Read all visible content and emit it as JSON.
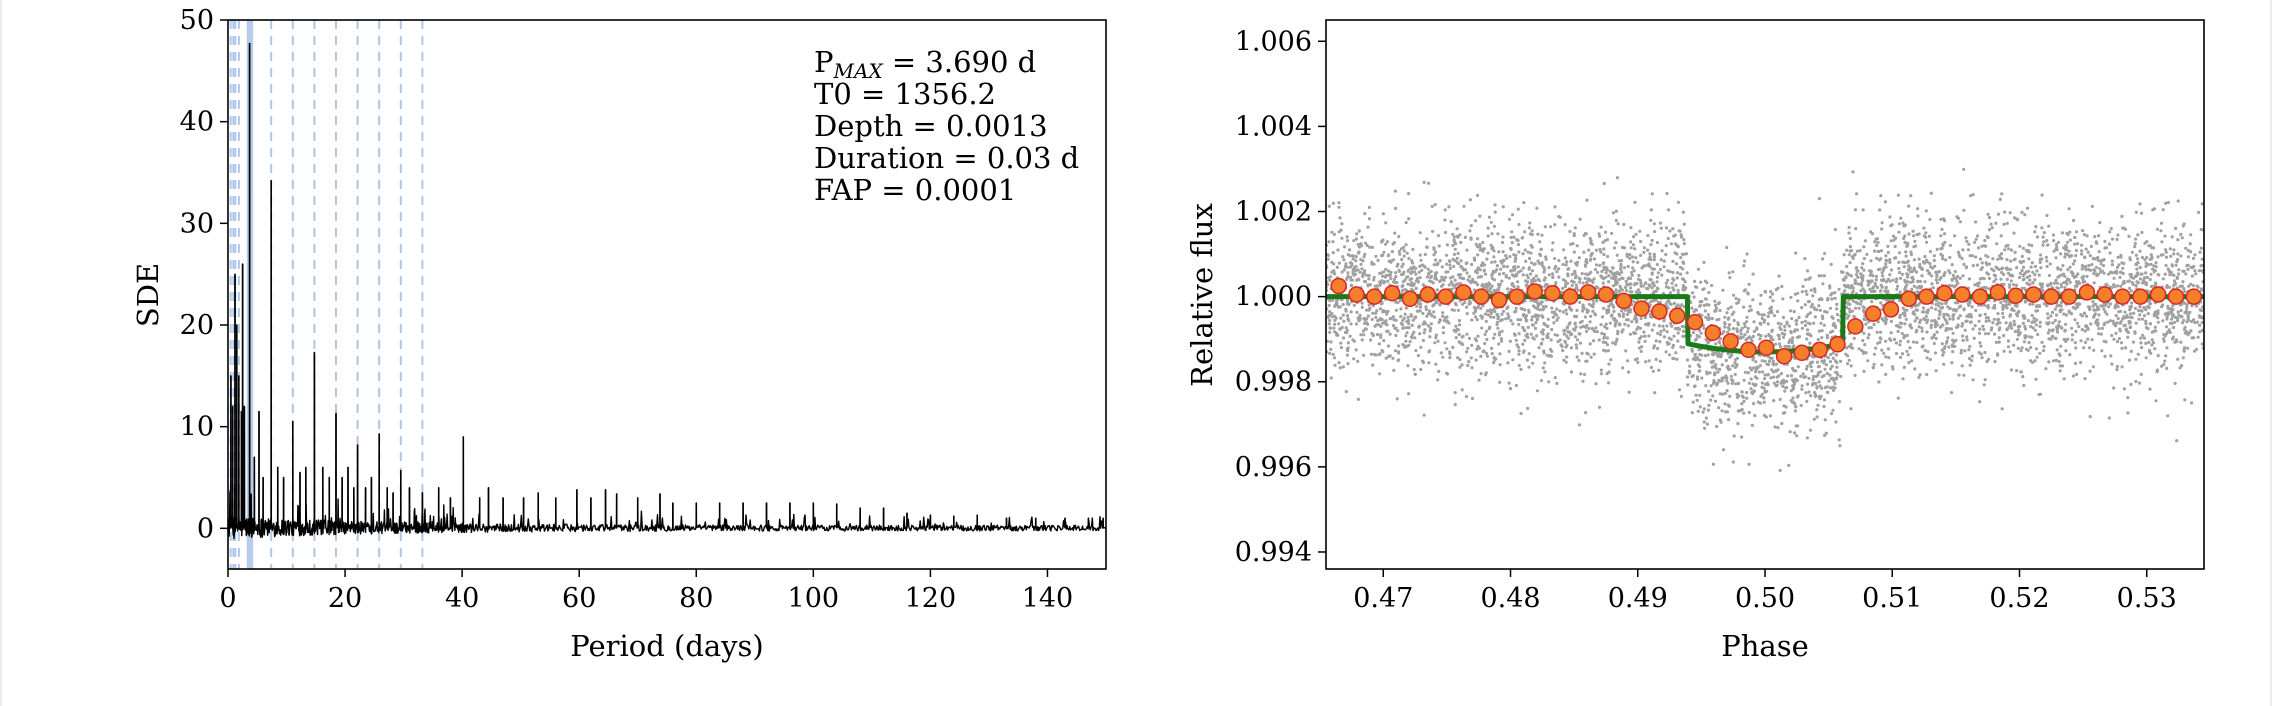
{
  "chart_data": [
    {
      "type": "line",
      "title": "",
      "xlabel": "Period (days)",
      "ylabel": "SDE",
      "xlim": [
        0,
        150
      ],
      "ylim": [
        -4,
        50
      ],
      "xticks": [
        0,
        20,
        40,
        60,
        80,
        100,
        120,
        140
      ],
      "yticks": [
        0,
        10,
        20,
        30,
        40,
        50
      ],
      "grid": false,
      "annotations": [
        {
          "main": "P",
          "sub": "MAX",
          "rest": " = 3.690 d"
        },
        {
          "text": "T0 = 1356.2"
        },
        {
          "text": "Depth = 0.0013"
        },
        {
          "text": "Duration = 0.03 d"
        },
        {
          "text": "FAP = 0.0001"
        }
      ],
      "highlight_band": [
        3.2,
        4.3
      ],
      "harmonic_lines": [
        0.46,
        0.92,
        1.23,
        1.85,
        7.38,
        11.07,
        14.76,
        18.45,
        22.14,
        25.83,
        29.52,
        33.21
      ],
      "series": [
        {
          "color": "#000000",
          "peaks": [
            [
              0.5,
              15
            ],
            [
              0.8,
              12
            ],
            [
              1.2,
              25
            ],
            [
              1.5,
              20
            ],
            [
              1.85,
              15
            ],
            [
              2.3,
              11.5
            ],
            [
              2.5,
              26
            ],
            [
              2.8,
              12
            ],
            [
              3.69,
              47.7
            ],
            [
              4.5,
              7
            ],
            [
              5.3,
              11.5
            ],
            [
              6.0,
              5
            ],
            [
              7.38,
              34.2
            ],
            [
              8.5,
              6
            ],
            [
              9.5,
              5
            ],
            [
              11.07,
              10.5
            ],
            [
              12.3,
              5.5
            ],
            [
              13.3,
              6
            ],
            [
              14.76,
              17.3
            ],
            [
              16.2,
              6
            ],
            [
              17.3,
              5
            ],
            [
              18.45,
              11.3
            ],
            [
              19.5,
              5
            ],
            [
              20.5,
              6
            ],
            [
              21.5,
              4
            ],
            [
              22.14,
              8.2
            ],
            [
              23.5,
              4
            ],
            [
              24.5,
              5
            ],
            [
              25.83,
              9.3
            ],
            [
              27.2,
              4
            ],
            [
              28.2,
              3.5
            ],
            [
              29.52,
              5.7
            ],
            [
              31,
              4
            ],
            [
              33.21,
              3.5
            ],
            [
              36,
              4
            ],
            [
              38,
              3
            ],
            [
              40.2,
              9
            ],
            [
              43,
              3
            ],
            [
              44.5,
              4
            ],
            [
              47,
              3
            ],
            [
              50.5,
              3
            ],
            [
              53,
              3.5
            ],
            [
              56,
              3
            ],
            [
              59.6,
              3.8
            ],
            [
              62,
              3
            ],
            [
              64.5,
              3.8
            ],
            [
              66.4,
              3.4
            ],
            [
              70,
              3
            ],
            [
              73.8,
              3.4
            ],
            [
              76,
              2.5
            ],
            [
              80,
              2.5
            ],
            [
              84,
              2.5
            ],
            [
              88,
              2.5
            ],
            [
              92,
              2.5
            ],
            [
              96,
              2.5
            ],
            [
              100,
              2.5
            ],
            [
              104,
              2.4
            ],
            [
              108,
              2
            ],
            [
              112,
              2
            ],
            [
              116,
              1.5
            ],
            [
              120,
              1.3
            ],
            [
              124,
              1.2
            ],
            [
              128,
              1.3
            ],
            [
              133,
              1
            ],
            [
              138,
              1
            ],
            [
              143,
              1
            ],
            [
              147,
              1
            ],
            [
              149.5,
              1
            ]
          ]
        }
      ]
    },
    {
      "type": "scatter",
      "title": "",
      "xlabel": "Phase",
      "ylabel": "Relative flux",
      "xlim": [
        0.4655,
        0.5345
      ],
      "ylim": [
        0.9936,
        1.0065
      ],
      "xticks": [
        "0.47",
        "0.48",
        "0.49",
        "0.50",
        "0.51",
        "0.52",
        "0.53"
      ],
      "yticks": [
        "0.994",
        "0.996",
        "0.998",
        "1.000",
        "1.002",
        "1.004",
        "1.006"
      ],
      "grid": false,
      "series": [
        {
          "kind": "raw-data",
          "color": "#555555",
          "scatter_sigma": 0.0009
        },
        {
          "kind": "binned-data",
          "color": "#f57f2a",
          "edge": "#d62728",
          "x": [
            0.4665,
            0.4679,
            0.4693,
            0.4707,
            0.4721,
            0.4735,
            0.4749,
            0.4763,
            0.4777,
            0.4791,
            0.4805,
            0.4819,
            0.4833,
            0.4847,
            0.4861,
            0.4875,
            0.4889,
            0.4903,
            0.4917,
            0.4931,
            0.4945,
            0.4959,
            0.4973,
            0.4987,
            0.5001,
            0.5015,
            0.5029,
            0.5043,
            0.5057,
            0.5071,
            0.5085,
            0.5099,
            0.5113,
            0.5127,
            0.5141,
            0.5155,
            0.5169,
            0.5183,
            0.5197,
            0.5211,
            0.5225,
            0.5239,
            0.5253,
            0.5267,
            0.5281,
            0.5295,
            0.5309,
            0.5323,
            0.5337
          ],
          "y": [
            1.00025,
            1.00005,
            1.0,
            1.00008,
            0.99995,
            1.00005,
            1.0,
            1.0001,
            1.0,
            0.99992,
            1.0,
            1.00012,
            1.00008,
            1.0,
            1.0001,
            1.00005,
            0.9999,
            0.99972,
            0.99965,
            0.99955,
            0.9994,
            0.99915,
            0.99895,
            0.99875,
            0.9988,
            0.9986,
            0.99868,
            0.99875,
            0.99888,
            0.9993,
            0.9996,
            0.9997,
            0.99995,
            1.0,
            1.00008,
            1.00005,
            1.0,
            1.0001,
            1.00002,
            1.00005,
            1.0,
            1.0,
            1.0001,
            1.00005,
            1.0,
            1.0,
            1.00005,
            1.0,
            1.0
          ]
        },
        {
          "kind": "model",
          "color": "#1a7a1a",
          "ingress": 0.4939,
          "egress": 0.5061,
          "depth": 0.0013
        }
      ]
    }
  ]
}
